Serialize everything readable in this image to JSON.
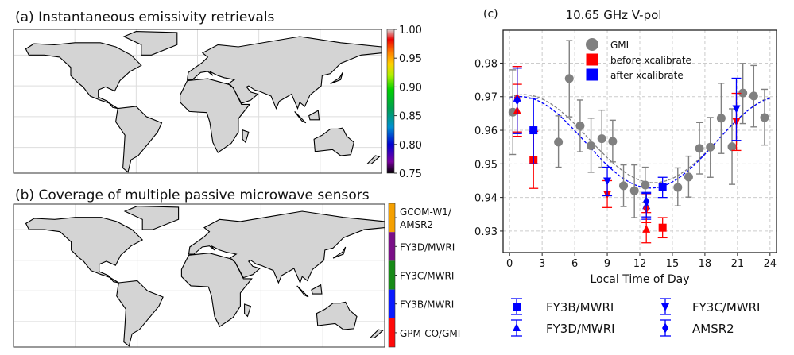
{
  "panel_a": {
    "title": "(a) Instantaneous emissivity retrievals",
    "colorbar_ticks": [
      "1.00",
      "0.95",
      "0.90",
      "0.85",
      "0.80",
      "0.75"
    ],
    "colorbar_range": [
      0.75,
      1.0
    ]
  },
  "panel_b": {
    "title": "(b) Coverage of multiple passive microwave sensors",
    "categories": [
      {
        "label_lines": [
          "GCOM-W1/",
          "AMSR2"
        ],
        "color": "#f5a000"
      },
      {
        "label_lines": [
          "FY3D/MWRI"
        ],
        "color": "#7a0f87"
      },
      {
        "label_lines": [
          "FY3C/MWRI"
        ],
        "color": "#178a17"
      },
      {
        "label_lines": [
          "FY3B/MWRI"
        ],
        "color": "#0a1aff"
      },
      {
        "label_lines": [
          "GPM-CO/GMI"
        ],
        "color": "#ff0a0a"
      }
    ]
  },
  "chart_data": {
    "type": "scatter",
    "panel_label": "(c)",
    "title": "10.65 GHz V-pol",
    "xlabel": "Local Time of Day",
    "ylabel": "",
    "xlim": [
      -0.6,
      24.6
    ],
    "ylim": [
      0.9236,
      0.9898
    ],
    "xticks": [
      0,
      3,
      6,
      9,
      12,
      15,
      18,
      21,
      24
    ],
    "yticks": [
      0.93,
      0.94,
      0.95,
      0.96,
      0.97,
      0.98
    ],
    "ytick_labels": [
      "0.93",
      "0.94",
      "0.95",
      "0.96",
      "0.97",
      "0.98"
    ],
    "grid": true,
    "legend_top": [
      {
        "label": "GMI",
        "color": "#808080",
        "marker": "circle"
      },
      {
        "label": "before xcalibrate",
        "color": "#ff0000",
        "marker": "square"
      },
      {
        "label": "after xcalibrate",
        "color": "#0000ff",
        "marker": "square"
      }
    ],
    "legend_bottom": [
      {
        "label": "FY3B/MWRI",
        "marker": "square"
      },
      {
        "label": "FY3C/MWRI",
        "marker": "triangle-down"
      },
      {
        "label": "FY3D/MWRI",
        "marker": "triangle-up"
      },
      {
        "label": "AMSR2",
        "marker": "diamond"
      }
    ],
    "gmi": {
      "color": "#808080",
      "points": [
        {
          "x": 0.3,
          "y": 0.9654,
          "lo": 0.9528,
          "hi": 0.978
        },
        {
          "x": 4.5,
          "y": 0.9565,
          "lo": 0.949,
          "hi": 0.9643
        },
        {
          "x": 5.5,
          "y": 0.9754,
          "lo": 0.964,
          "hi": 0.9867
        },
        {
          "x": 6.5,
          "y": 0.9613,
          "lo": 0.9536,
          "hi": 0.969
        },
        {
          "x": 7.5,
          "y": 0.9554,
          "lo": 0.9475,
          "hi": 0.9636
        },
        {
          "x": 8.5,
          "y": 0.9575,
          "lo": 0.949,
          "hi": 0.966
        },
        {
          "x": 9.5,
          "y": 0.9567,
          "lo": 0.9506,
          "hi": 0.963
        },
        {
          "x": 10.5,
          "y": 0.9435,
          "lo": 0.9373,
          "hi": 0.9497
        },
        {
          "x": 11.5,
          "y": 0.942,
          "lo": 0.934,
          "hi": 0.9497
        },
        {
          "x": 12.5,
          "y": 0.9437,
          "lo": 0.9385,
          "hi": 0.949
        },
        {
          "x": 15.5,
          "y": 0.943,
          "lo": 0.9375,
          "hi": 0.9488
        },
        {
          "x": 16.5,
          "y": 0.9461,
          "lo": 0.9401,
          "hi": 0.9523
        },
        {
          "x": 17.5,
          "y": 0.9546,
          "lo": 0.947,
          "hi": 0.9623
        },
        {
          "x": 18.5,
          "y": 0.955,
          "lo": 0.946,
          "hi": 0.9638
        },
        {
          "x": 19.5,
          "y": 0.9636,
          "lo": 0.9531,
          "hi": 0.974
        },
        {
          "x": 20.5,
          "y": 0.9551,
          "lo": 0.9439,
          "hi": 0.9664
        },
        {
          "x": 21.5,
          "y": 0.9711,
          "lo": 0.962,
          "hi": 0.9799
        },
        {
          "x": 22.5,
          "y": 0.9702,
          "lo": 0.961,
          "hi": 0.9793
        },
        {
          "x": 23.5,
          "y": 0.9638,
          "lo": 0.9556,
          "hi": 0.9722
        }
      ]
    },
    "sensors": [
      {
        "sensor": "FY3D/MWRI",
        "marker": "triangle-up",
        "before": [
          {
            "x": 0.7,
            "y": 0.9658,
            "lo": 0.9582,
            "hi": 0.9737
          },
          {
            "x": 12.6,
            "y": 0.9305,
            "lo": 0.9265,
            "hi": 0.9355
          }
        ],
        "after": [
          {
            "x": 0.7,
            "y": 0.9695,
            "lo": 0.9595,
            "hi": 0.979
          },
          {
            "x": 12.6,
            "y": 0.9375,
            "lo": 0.9335,
            "hi": 0.9415
          }
        ]
      },
      {
        "sensor": "AMSR2",
        "marker": "diamond",
        "before": [
          {
            "x": 0.7,
            "y": 0.9695,
            "lo": 0.9595,
            "hi": 0.979
          },
          {
            "x": 12.6,
            "y": 0.9367,
            "lo": 0.9325,
            "hi": 0.9408
          }
        ],
        "after": [
          {
            "x": 0.7,
            "y": 0.969,
            "lo": 0.959,
            "hi": 0.9785
          },
          {
            "x": 12.6,
            "y": 0.9388,
            "lo": 0.9342,
            "hi": 0.9412
          }
        ]
      },
      {
        "sensor": "FY3B/MWRI",
        "marker": "square",
        "before": [
          {
            "x": 2.2,
            "y": 0.9512,
            "lo": 0.9427,
            "hi": 0.9597
          },
          {
            "x": 14.1,
            "y": 0.931,
            "lo": 0.928,
            "hi": 0.934
          }
        ],
        "after": [
          {
            "x": 2.2,
            "y": 0.96,
            "lo": 0.95,
            "hi": 0.9695
          },
          {
            "x": 14.1,
            "y": 0.943,
            "lo": 0.94,
            "hi": 0.946
          }
        ]
      },
      {
        "sensor": "FY3C/MWRI",
        "marker": "triangle-down",
        "before": [
          {
            "x": 9.0,
            "y": 0.941,
            "lo": 0.937,
            "hi": 0.945
          },
          {
            "x": 20.9,
            "y": 0.9627,
            "lo": 0.954,
            "hi": 0.971
          }
        ],
        "after": [
          {
            "x": 9.0,
            "y": 0.945,
            "lo": 0.9405,
            "hi": 0.949
          },
          {
            "x": 20.9,
            "y": 0.9665,
            "lo": 0.957,
            "hi": 0.9755
          }
        ]
      }
    ],
    "fits": [
      {
        "name": "GMI fit",
        "color": "#808080",
        "mean": 0.9575,
        "amplitude": 0.0131,
        "peak_hour": 1.3
      },
      {
        "name": "after xcalibrate fit",
        "color": "#0000ff",
        "mean": 0.9564,
        "amplitude": 0.0136,
        "peak_hour": 1.0
      }
    ],
    "colors": {
      "before": "#ff0000",
      "after": "#0000ff"
    }
  }
}
